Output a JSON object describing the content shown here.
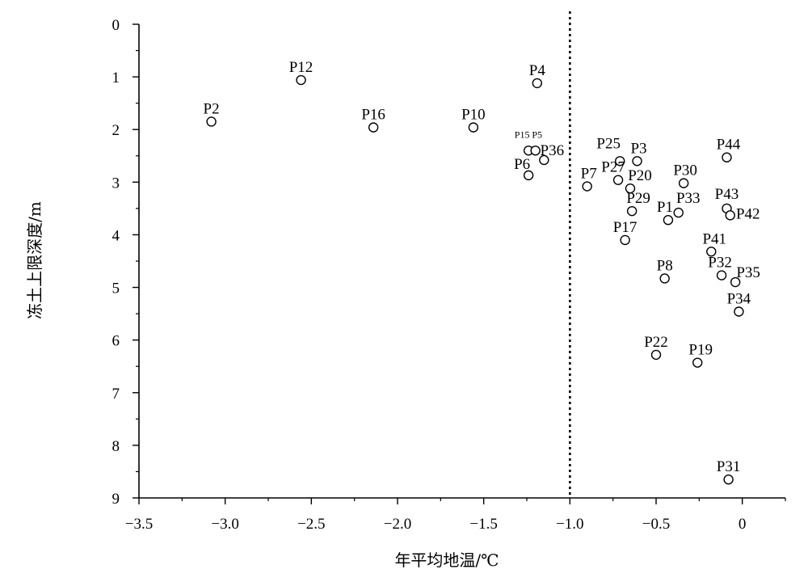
{
  "chart_data": {
    "type": "scatter",
    "title": "",
    "xlabel": "年平均地温/℃",
    "ylabel": "冻土上限深度/m",
    "xlim": [
      -3.5,
      0.25
    ],
    "ylim": [
      0,
      9
    ],
    "y_inverted": true,
    "x_ticks": [
      -3.5,
      -3.0,
      -2.5,
      -2.0,
      -1.5,
      -1.0,
      -0.5,
      0
    ],
    "x_tick_labels": [
      "−3.5",
      "−3.0",
      "−2.5",
      "−2.0",
      "−1.5",
      "−1.0",
      "−0.5",
      "0"
    ],
    "y_ticks": [
      0,
      1,
      2,
      3,
      4,
      5,
      6,
      7,
      8,
      9
    ],
    "y_tick_labels": [
      "0",
      "1",
      "2",
      "3",
      "4",
      "5",
      "6",
      "7",
      "8",
      "9"
    ],
    "grid": false,
    "reference_line": {
      "x": -1.0,
      "style": "dotted"
    },
    "marker": "open-circle",
    "points": [
      {
        "name": "P2",
        "x": -3.08,
        "y": 1.85
      },
      {
        "name": "P12",
        "x": -2.56,
        "y": 1.06
      },
      {
        "name": "P16",
        "x": -2.14,
        "y": 1.96
      },
      {
        "name": "P10",
        "x": -1.56,
        "y": 1.96
      },
      {
        "name": "P4",
        "x": -1.19,
        "y": 1.12
      },
      {
        "name": "P15",
        "x": -1.24,
        "y": 2.4
      },
      {
        "name": "P5",
        "x": -1.2,
        "y": 2.4
      },
      {
        "name": "P36",
        "x": -1.15,
        "y": 2.58
      },
      {
        "name": "P6",
        "x": -1.24,
        "y": 2.87
      },
      {
        "name": "P7",
        "x": -0.9,
        "y": 3.08
      },
      {
        "name": "P25",
        "x": -0.71,
        "y": 2.6
      },
      {
        "name": "P3",
        "x": -0.61,
        "y": 2.6
      },
      {
        "name": "P27",
        "x": -0.72,
        "y": 2.96
      },
      {
        "name": "P20",
        "x": -0.65,
        "y": 3.12
      },
      {
        "name": "P29",
        "x": -0.64,
        "y": 3.55
      },
      {
        "name": "P1",
        "x": -0.43,
        "y": 3.72
      },
      {
        "name": "P33",
        "x": -0.37,
        "y": 3.58
      },
      {
        "name": "P30",
        "x": -0.34,
        "y": 3.02
      },
      {
        "name": "P17",
        "x": -0.68,
        "y": 4.1
      },
      {
        "name": "P8",
        "x": -0.45,
        "y": 4.83
      },
      {
        "name": "P41",
        "x": -0.18,
        "y": 4.32
      },
      {
        "name": "P32",
        "x": -0.12,
        "y": 4.77
      },
      {
        "name": "P35",
        "x": -0.04,
        "y": 4.9
      },
      {
        "name": "P34",
        "x": -0.02,
        "y": 5.46
      },
      {
        "name": "P44",
        "x": -0.09,
        "y": 2.53
      },
      {
        "name": "P43",
        "x": -0.09,
        "y": 3.5
      },
      {
        "name": "P42",
        "x": -0.07,
        "y": 3.63
      },
      {
        "name": "P22",
        "x": -0.5,
        "y": 6.28
      },
      {
        "name": "P19",
        "x": -0.26,
        "y": 6.43
      },
      {
        "name": "P31",
        "x": -0.08,
        "y": 8.65
      }
    ]
  }
}
